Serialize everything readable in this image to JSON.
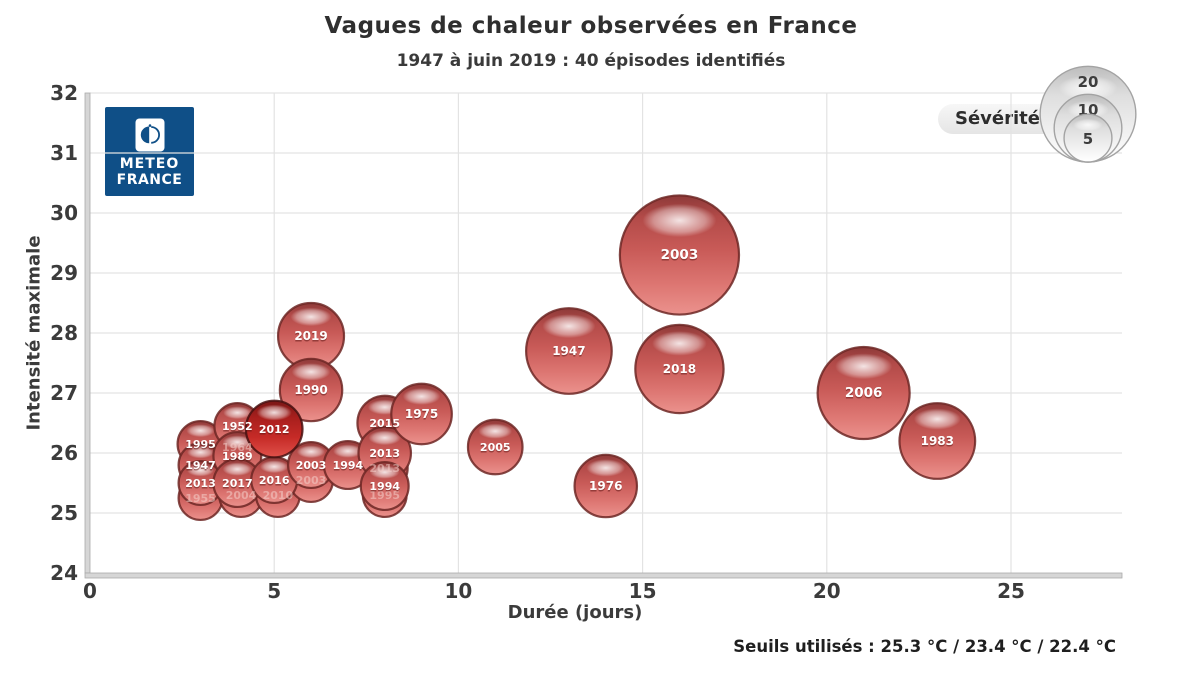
{
  "title": "Vagues de chaleur observées en France",
  "subtitle": "1947 à juin 2019 : 40 épisodes identifiés",
  "footer": "Seuils utilisés : 25.3 °C / 23.4 °C / 22.4 °C",
  "logo": {
    "line1": "METEO",
    "line2": "FRANCE"
  },
  "legend": {
    "label": "Sévérité",
    "sizes": [
      20,
      10,
      5
    ]
  },
  "colors": {
    "meteo_blue": "#0f4f87",
    "bubble_top": "#8e3a39",
    "bubble_up": "#b24a48",
    "bubble_mid": "#c85a57",
    "bubble_low": "#dd7672",
    "bubble_bottom": "#eb928d",
    "bubble_stroke": "#6d2725",
    "bubble_dark_top": "#7a1716",
    "bubble_dark_up": "#a81f1d",
    "bubble_dark_mid": "#c62b27",
    "bubble_dark_bottom": "#e0514a",
    "bubble_dark_stroke": "#471010",
    "legend_top": "#bdbdbd",
    "legend_mid": "#dedede",
    "legend_bottom": "#ffffff",
    "legend_stroke": "#a3a3a3",
    "grid": "#e3e3e3",
    "axis_bar": "#d6d6d6",
    "axis_bar_edge": "#ababab",
    "tick_text": "#3b3b3b"
  },
  "chart_data": {
    "type": "bubble",
    "title": "Vagues de chaleur observées en France",
    "subtitle": "1947 à juin 2019 : 40 épisodes identifiés",
    "xlabel": "Durée (jours)",
    "ylabel": "Intensité maximale",
    "xlim": [
      0,
      28
    ],
    "ylim": [
      24,
      32
    ],
    "x_ticks": [
      0,
      5,
      10,
      15,
      20,
      25
    ],
    "y_ticks": [
      24,
      25,
      26,
      27,
      28,
      29,
      30,
      31,
      32
    ],
    "grid": true,
    "size_legend_label": "Sévérité",
    "size_legend_values": [
      20,
      10,
      5
    ],
    "points": [
      {
        "year": "1964",
        "duration_days": 4,
        "intensity": 26.1,
        "severity": 4.2,
        "faint": true
      },
      {
        "year": "1955",
        "duration_days": 3,
        "intensity": 25.25,
        "severity": 4.2,
        "faint": true
      },
      {
        "year": "2004",
        "duration_days": 4.1,
        "intensity": 25.3,
        "severity": 4.2,
        "faint": true
      },
      {
        "year": "2010",
        "duration_days": 5.1,
        "intensity": 25.3,
        "severity": 4.2,
        "faint": true
      },
      {
        "year": "2003",
        "duration_days": 6,
        "intensity": 25.55,
        "severity": 4.2,
        "faint": true
      },
      {
        "year": "2013",
        "duration_days": 8,
        "intensity": 25.75,
        "severity": 4.6,
        "faint": true
      },
      {
        "year": "1995",
        "duration_days": 8,
        "intensity": 25.3,
        "severity": 4.2,
        "faint": true
      },
      {
        "year": "1995",
        "duration_days": 3,
        "intensity": 26.15,
        "severity": 4.6
      },
      {
        "year": "1947",
        "duration_days": 3,
        "intensity": 25.8,
        "severity": 4.2
      },
      {
        "year": "2013",
        "duration_days": 3,
        "intensity": 25.5,
        "severity": 4.2
      },
      {
        "year": "1952",
        "duration_days": 4,
        "intensity": 26.45,
        "severity": 4.6
      },
      {
        "year": "1989",
        "duration_days": 4,
        "intensity": 25.95,
        "severity": 5
      },
      {
        "year": "2017",
        "duration_days": 4,
        "intensity": 25.5,
        "severity": 5
      },
      {
        "year": "2016",
        "duration_days": 5,
        "intensity": 25.55,
        "severity": 4.6
      },
      {
        "year": "2003",
        "duration_days": 6,
        "intensity": 25.8,
        "severity": 4.6
      },
      {
        "year": "1994",
        "duration_days": 7,
        "intensity": 25.8,
        "severity": 5
      },
      {
        "year": "2015",
        "duration_days": 8,
        "intensity": 26.5,
        "severity": 6.5
      },
      {
        "year": "2013",
        "duration_days": 8,
        "intensity": 26.0,
        "severity": 6
      },
      {
        "year": "1994",
        "duration_days": 8,
        "intensity": 25.45,
        "severity": 5
      },
      {
        "year": "2019",
        "duration_days": 6,
        "intensity": 27.95,
        "severity": 9.5
      },
      {
        "year": "1990",
        "duration_days": 6,
        "intensity": 27.05,
        "severity": 8.5
      },
      {
        "year": "2012",
        "duration_days": 5,
        "intensity": 26.4,
        "severity": 7,
        "dark": true
      },
      {
        "year": "1975",
        "duration_days": 9,
        "intensity": 26.65,
        "severity": 8
      },
      {
        "year": "2005",
        "duration_days": 11,
        "intensity": 26.1,
        "severity": 6.5
      },
      {
        "year": "1976",
        "duration_days": 14,
        "intensity": 25.45,
        "severity": 8.5
      },
      {
        "year": "1947",
        "duration_days": 13,
        "intensity": 27.7,
        "severity": 16
      },
      {
        "year": "2018",
        "duration_days": 16,
        "intensity": 27.4,
        "severity": 17
      },
      {
        "year": "2003",
        "duration_days": 16,
        "intensity": 29.3,
        "severity": 31
      },
      {
        "year": "2006",
        "duration_days": 21,
        "intensity": 27.0,
        "severity": 18.5
      },
      {
        "year": "1983",
        "duration_days": 23,
        "intensity": 26.2,
        "severity": 12.5
      }
    ]
  }
}
